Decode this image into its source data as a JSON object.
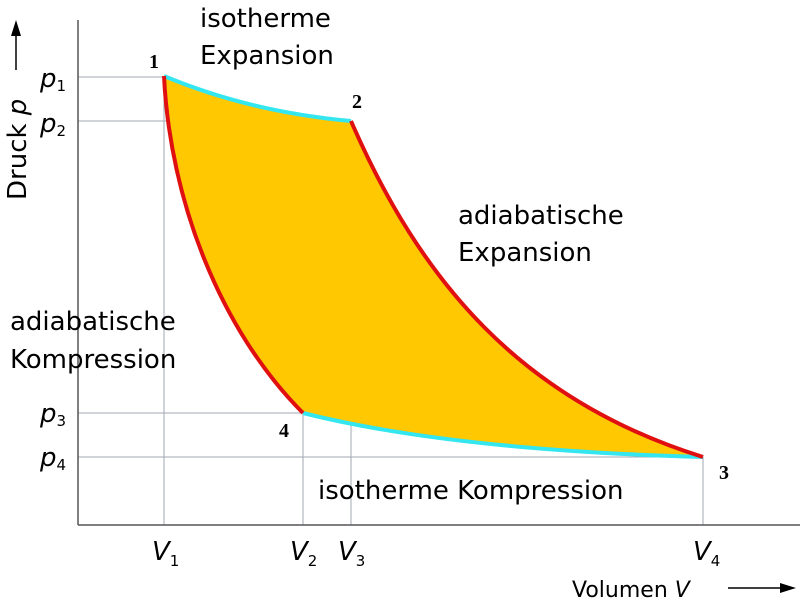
{
  "axes": {
    "y_label": {
      "text": "Druck",
      "symbol": "p"
    },
    "x_label": {
      "text": "Volumen",
      "symbol": "V"
    }
  },
  "pressures": [
    {
      "symbol": "p",
      "sub": "1"
    },
    {
      "symbol": "p",
      "sub": "2"
    },
    {
      "symbol": "p",
      "sub": "3"
    },
    {
      "symbol": "p",
      "sub": "4"
    }
  ],
  "volumes": [
    {
      "symbol": "V",
      "sub": "1"
    },
    {
      "symbol": "V",
      "sub": "2"
    },
    {
      "symbol": "V",
      "sub": "3"
    },
    {
      "symbol": "V",
      "sub": "4"
    }
  ],
  "points": [
    "1",
    "2",
    "3",
    "4"
  ],
  "processes": [
    {
      "lines": [
        "isotherme",
        "Expansion"
      ]
    },
    {
      "lines": [
        "adiabatische",
        "Expansion"
      ]
    },
    {
      "lines": [
        "isotherme Kompression"
      ]
    },
    {
      "lines": [
        "adiabatische",
        "Kompression"
      ]
    }
  ]
}
